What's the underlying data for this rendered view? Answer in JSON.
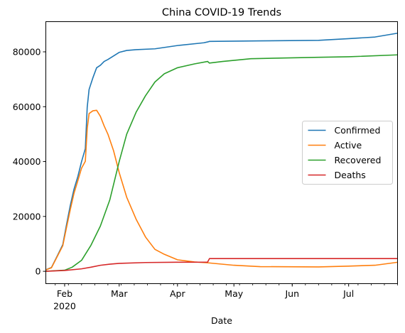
{
  "chart_data": {
    "type": "line",
    "title": "China COVID-19 Trends",
    "xlabel": "Date",
    "ylabel": "",
    "x_axis": {
      "range": [
        "2020-01-22",
        "2020-07-27"
      ],
      "major_ticks": [
        {
          "date": "2020-02-01",
          "label": "Feb",
          "sublabel": "2020"
        },
        {
          "date": "2020-03-01",
          "label": "Mar",
          "sublabel": ""
        },
        {
          "date": "2020-04-01",
          "label": "Apr",
          "sublabel": ""
        },
        {
          "date": "2020-05-01",
          "label": "May",
          "sublabel": ""
        },
        {
          "date": "2020-06-01",
          "label": "Jun",
          "sublabel": ""
        },
        {
          "date": "2020-07-01",
          "label": "Jul",
          "sublabel": ""
        }
      ]
    },
    "y_axis": {
      "ylim": [
        -4500,
        91000
      ],
      "ticks": [
        0,
        20000,
        40000,
        60000,
        80000
      ],
      "tick_labels": [
        "0",
        "20000",
        "40000",
        "60000",
        "80000"
      ]
    },
    "grid": false,
    "legend": "center-right",
    "series": [
      {
        "name": "Confirmed",
        "color": "#1f77b4",
        "points": [
          [
            "2020-01-22",
            548
          ],
          [
            "2020-01-25",
            1400
          ],
          [
            "2020-01-28",
            5500
          ],
          [
            "2020-01-31",
            9700
          ],
          [
            "2020-02-02",
            17000
          ],
          [
            "2020-02-04",
            24000
          ],
          [
            "2020-02-06",
            30000
          ],
          [
            "2020-02-08",
            34500
          ],
          [
            "2020-02-10",
            40000
          ],
          [
            "2020-02-12",
            44700
          ],
          [
            "2020-02-13",
            59800
          ],
          [
            "2020-02-14",
            66300
          ],
          [
            "2020-02-16",
            70500
          ],
          [
            "2020-02-18",
            74200
          ],
          [
            "2020-02-20",
            75100
          ],
          [
            "2020-02-22",
            76500
          ],
          [
            "2020-02-24",
            77200
          ],
          [
            "2020-02-27",
            78500
          ],
          [
            "2020-03-01",
            79800
          ],
          [
            "2020-03-05",
            80500
          ],
          [
            "2020-03-10",
            80800
          ],
          [
            "2020-03-20",
            81100
          ],
          [
            "2020-04-01",
            82300
          ],
          [
            "2020-04-15",
            83300
          ],
          [
            "2020-04-17",
            83600
          ],
          [
            "2020-04-18",
            83800
          ],
          [
            "2020-05-15",
            84000
          ],
          [
            "2020-06-15",
            84200
          ],
          [
            "2020-07-01",
            84800
          ],
          [
            "2020-07-15",
            85400
          ],
          [
            "2020-07-27",
            86800
          ]
        ]
      },
      {
        "name": "Active",
        "color": "#ff7f0e",
        "points": [
          [
            "2020-01-22",
            500
          ],
          [
            "2020-01-25",
            1300
          ],
          [
            "2020-01-28",
            5300
          ],
          [
            "2020-01-31",
            9300
          ],
          [
            "2020-02-02",
            16000
          ],
          [
            "2020-02-04",
            22500
          ],
          [
            "2020-02-06",
            28500
          ],
          [
            "2020-02-08",
            33000
          ],
          [
            "2020-02-10",
            37600
          ],
          [
            "2020-02-12",
            40100
          ],
          [
            "2020-02-13",
            52000
          ],
          [
            "2020-02-14",
            57500
          ],
          [
            "2020-02-16",
            58500
          ],
          [
            "2020-02-18",
            58700
          ],
          [
            "2020-02-20",
            56500
          ],
          [
            "2020-02-22",
            53000
          ],
          [
            "2020-02-24",
            50000
          ],
          [
            "2020-02-27",
            44000
          ],
          [
            "2020-03-01",
            36000
          ],
          [
            "2020-03-05",
            27000
          ],
          [
            "2020-03-10",
            19000
          ],
          [
            "2020-03-15",
            12500
          ],
          [
            "2020-03-20",
            8000
          ],
          [
            "2020-03-25",
            6200
          ],
          [
            "2020-04-01",
            4200
          ],
          [
            "2020-04-10",
            3400
          ],
          [
            "2020-04-17",
            3100
          ],
          [
            "2020-05-01",
            2200
          ],
          [
            "2020-05-15",
            1700
          ],
          [
            "2020-06-15",
            1600
          ],
          [
            "2020-07-01",
            1900
          ],
          [
            "2020-07-15",
            2200
          ],
          [
            "2020-07-27",
            3300
          ]
        ]
      },
      {
        "name": "Recovered",
        "color": "#2ca02c",
        "points": [
          [
            "2020-01-22",
            28
          ],
          [
            "2020-02-01",
            400
          ],
          [
            "2020-02-05",
            1500
          ],
          [
            "2020-02-10",
            4000
          ],
          [
            "2020-02-15",
            9500
          ],
          [
            "2020-02-20",
            16500
          ],
          [
            "2020-02-25",
            26000
          ],
          [
            "2020-03-01",
            40000
          ],
          [
            "2020-03-05",
            50000
          ],
          [
            "2020-03-10",
            58000
          ],
          [
            "2020-03-15",
            64000
          ],
          [
            "2020-03-20",
            69000
          ],
          [
            "2020-03-25",
            72000
          ],
          [
            "2020-04-01",
            74200
          ],
          [
            "2020-04-10",
            75600
          ],
          [
            "2020-04-17",
            76500
          ],
          [
            "2020-04-18",
            75900
          ],
          [
            "2020-04-25",
            76500
          ],
          [
            "2020-05-10",
            77500
          ],
          [
            "2020-06-15",
            78000
          ],
          [
            "2020-07-01",
            78200
          ],
          [
            "2020-07-27",
            78900
          ]
        ]
      },
      {
        "name": "Deaths",
        "color": "#d62728",
        "points": [
          [
            "2020-01-22",
            17
          ],
          [
            "2020-02-01",
            300
          ],
          [
            "2020-02-10",
            900
          ],
          [
            "2020-02-15",
            1500
          ],
          [
            "2020-02-20",
            2200
          ],
          [
            "2020-02-25",
            2600
          ],
          [
            "2020-03-01",
            2900
          ],
          [
            "2020-03-15",
            3200
          ],
          [
            "2020-04-01",
            3300
          ],
          [
            "2020-04-17",
            3350
          ],
          [
            "2020-04-18",
            4630
          ],
          [
            "2020-07-27",
            4650
          ]
        ]
      }
    ]
  }
}
